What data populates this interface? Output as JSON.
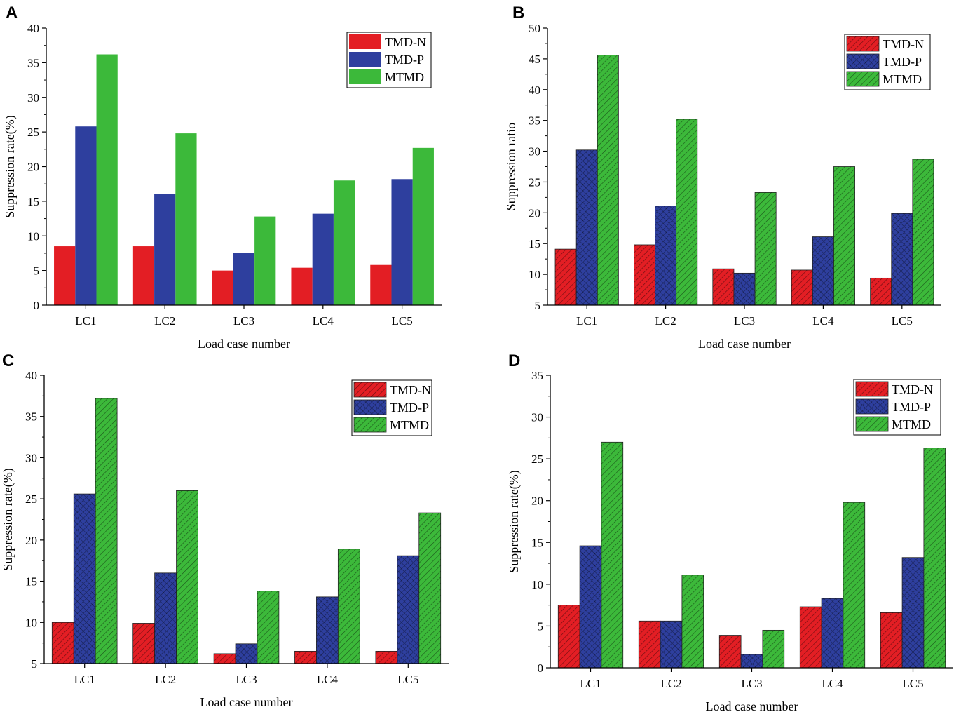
{
  "figure": {
    "colors": {
      "TMD-N": "#e31e24",
      "TMD-P": "#2e3f9e",
      "MTMD": "#3cb93a"
    }
  },
  "chart_data": [
    {
      "panel": "A",
      "type": "bar",
      "hatched": false,
      "categories": [
        "LC1",
        "LC2",
        "LC3",
        "LC4",
        "LC5"
      ],
      "series": [
        {
          "name": "TMD-N",
          "values": [
            8.5,
            8.5,
            5.0,
            5.4,
            5.8
          ]
        },
        {
          "name": "TMD-P",
          "values": [
            25.8,
            16.1,
            7.5,
            13.2,
            18.2
          ]
        },
        {
          "name": "MTMD",
          "values": [
            36.2,
            24.8,
            12.8,
            18.0,
            22.7
          ]
        }
      ],
      "xlabel": "Load case number",
      "ylabel": "Suppression rate(%)",
      "ylim": [
        0,
        40
      ],
      "yticks": [
        0,
        5,
        10,
        15,
        20,
        25,
        30,
        35,
        40
      ],
      "legend": "top-right"
    },
    {
      "panel": "B",
      "type": "bar",
      "hatched": true,
      "categories": [
        "LC1",
        "LC2",
        "LC3",
        "LC4",
        "LC5"
      ],
      "series": [
        {
          "name": "TMD-N",
          "values": [
            14.1,
            14.8,
            10.9,
            10.7,
            9.4
          ]
        },
        {
          "name": "TMD-P",
          "values": [
            30.2,
            21.1,
            10.2,
            16.1,
            19.9
          ]
        },
        {
          "name": "MTMD",
          "values": [
            45.6,
            35.2,
            23.3,
            27.5,
            28.7
          ]
        }
      ],
      "xlabel": "Load case number",
      "ylabel": "Suppression ratio",
      "ylim": [
        5,
        50
      ],
      "yticks": [
        5,
        10,
        15,
        20,
        25,
        30,
        35,
        40,
        45,
        50
      ],
      "legend": "top-right"
    },
    {
      "panel": "C",
      "type": "bar",
      "hatched": true,
      "categories": [
        "LC1",
        "LC2",
        "LC3",
        "LC4",
        "LC5"
      ],
      "series": [
        {
          "name": "TMD-N",
          "values": [
            10.0,
            9.9,
            6.2,
            6.5,
            6.5
          ]
        },
        {
          "name": "TMD-P",
          "values": [
            25.6,
            16.0,
            7.4,
            13.1,
            18.1
          ]
        },
        {
          "name": "MTMD",
          "values": [
            37.2,
            26.0,
            13.8,
            18.9,
            23.3
          ]
        }
      ],
      "xlabel": "Load case number",
      "ylabel": "Suppression rate(%)",
      "ylim": [
        5,
        40
      ],
      "yticks": [
        5,
        10,
        15,
        20,
        25,
        30,
        35,
        40
      ],
      "legend": "top-right"
    },
    {
      "panel": "D",
      "type": "bar",
      "hatched": true,
      "categories": [
        "LC1",
        "LC2",
        "LC3",
        "LC4",
        "LC5"
      ],
      "series": [
        {
          "name": "TMD-N",
          "values": [
            7.5,
            5.6,
            3.9,
            7.3,
            6.6
          ]
        },
        {
          "name": "TMD-P",
          "values": [
            14.6,
            5.6,
            1.6,
            8.3,
            13.2
          ]
        },
        {
          "name": "MTMD",
          "values": [
            27.0,
            11.1,
            4.5,
            19.8,
            26.3
          ]
        }
      ],
      "xlabel": "Load case number",
      "ylabel": "Suppression rate(%)",
      "ylim": [
        0,
        35
      ],
      "yticks": [
        0,
        5,
        10,
        15,
        20,
        25,
        30,
        35
      ],
      "legend": "top-right"
    }
  ]
}
